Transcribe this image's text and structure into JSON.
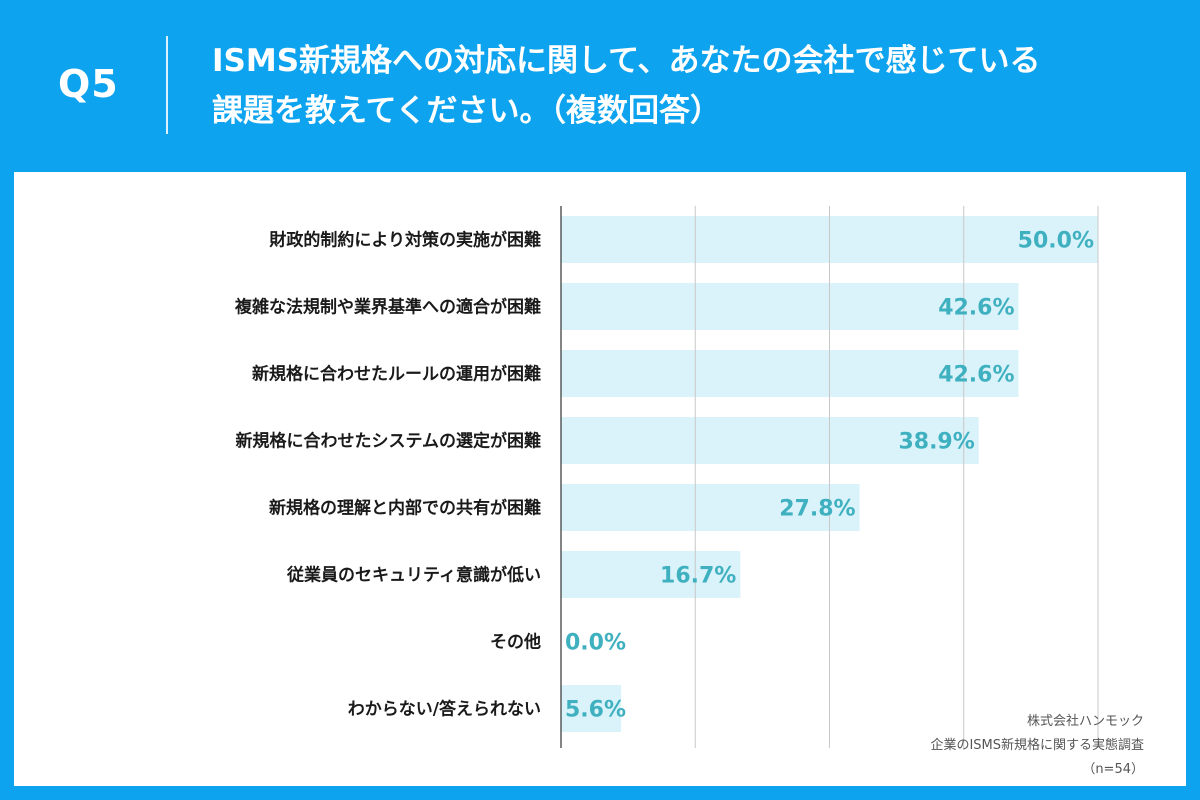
{
  "header": {
    "q_number": "Q5",
    "question_line1": "ISMS新規格への対応に関して、あなたの会社で感じている",
    "question_line2": "課題を教えてください。（複数回答）"
  },
  "source": {
    "company": "株式会社ハンモック",
    "survey": "企業のISMS新規格に関する実態調査",
    "sample": "（n=54）"
  },
  "colors": {
    "background": "#0ea3ee",
    "bar": "#daf3fb",
    "value_text": "#3fb0bf",
    "grid": "#c8c8c8"
  },
  "chart_data": {
    "type": "bar",
    "orientation": "horizontal",
    "categories": [
      "財政的制約により対策の実施が困難",
      "複雑な法規制や業界基準への適合が困難",
      "新規格に合わせたルールの運用が困難",
      "新規格に合わせたシステムの選定が困難",
      "新規格の理解と内部での共有が困難",
      "従業員のセキュリティ意識が低い",
      "その他",
      "わからない/答えられない"
    ],
    "values": [
      50.0,
      42.6,
      42.6,
      38.9,
      27.8,
      16.7,
      0.0,
      5.6
    ],
    "value_labels": [
      "50.0%",
      "42.6%",
      "42.6%",
      "38.9%",
      "27.8%",
      "16.7%",
      "0.0%",
      "5.6%"
    ],
    "xlim": [
      0,
      50
    ],
    "grid": true
  }
}
